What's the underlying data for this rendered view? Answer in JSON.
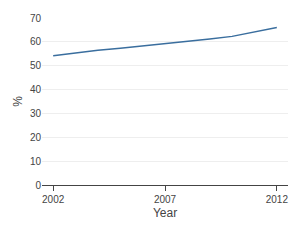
{
  "chart_data": {
    "type": "line",
    "x": [
      2002,
      2003,
      2004,
      2005,
      2006,
      2007,
      2008,
      2009,
      2010,
      2011,
      2012
    ],
    "values": [
      54.2,
      55.5,
      56.5,
      57.3,
      58.2,
      59.2,
      60.3,
      61.2,
      62.3,
      64.0,
      66.0
    ],
    "color": "#3a6e9e",
    "xlabel": "Year",
    "ylabel": "%",
    "xlim": [
      2001.5,
      2012.5
    ],
    "xticks": [
      2002,
      2007,
      2012
    ],
    "ylim": [
      0,
      70
    ],
    "yticks": [
      0,
      10,
      20,
      30,
      40,
      50,
      60,
      70
    ],
    "grid": true
  }
}
